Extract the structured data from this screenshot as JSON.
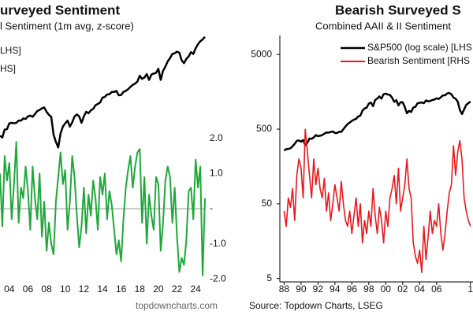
{
  "chart_data": [
    {
      "type": "line",
      "title": "urveyed Sentiment",
      "subtitle": "l Sentiment (1m avg, z-score)",
      "source": "topdowncharts.com",
      "log_y": true,
      "zero_line": true,
      "xlim": [
        2003,
        2025
      ],
      "xticks": [
        {
          "value": 2004,
          "label": "04"
        },
        {
          "value": 2006,
          "label": "06"
        },
        {
          "value": 2008,
          "label": "08"
        },
        {
          "value": 2010,
          "label": "10"
        },
        {
          "value": 2012,
          "label": "12"
        },
        {
          "value": 2014,
          "label": "14"
        },
        {
          "value": 2016,
          "label": "16"
        },
        {
          "value": 2018,
          "label": "18"
        },
        {
          "value": 2020,
          "label": "20"
        },
        {
          "value": 2022,
          "label": "22"
        },
        {
          "value": 2024,
          "label": "24"
        }
      ],
      "ylim": [
        50,
        6450
      ],
      "y2lim": [
        -2.13,
        5.0
      ],
      "y2ticks": [
        {
          "value": 2,
          "label": "2.0"
        },
        {
          "value": 1,
          "label": "1.0"
        },
        {
          "value": 0,
          "label": "-"
        },
        {
          "value": -1,
          "label": "-1.0"
        },
        {
          "value": -2,
          "label": "-2.0"
        }
      ],
      "x": [
        2003,
        2003.25,
        2003.5,
        2003.75,
        2004,
        2004.25,
        2004.5,
        2004.75,
        2005,
        2005.25,
        2005.5,
        2005.75,
        2006,
        2006.25,
        2006.5,
        2006.75,
        2007,
        2007.25,
        2007.5,
        2007.75,
        2008,
        2008.25,
        2008.5,
        2008.75,
        2009,
        2009.25,
        2009.5,
        2009.75,
        2010,
        2010.25,
        2010.5,
        2010.75,
        2011,
        2011.25,
        2011.5,
        2011.75,
        2012,
        2012.25,
        2012.5,
        2012.75,
        2013,
        2013.25,
        2013.5,
        2013.75,
        2014,
        2014.25,
        2014.5,
        2014.75,
        2015,
        2015.25,
        2015.5,
        2015.75,
        2016,
        2016.25,
        2016.5,
        2016.75,
        2017,
        2017.25,
        2017.5,
        2017.75,
        2018,
        2018.25,
        2018.5,
        2018.75,
        2019,
        2019.25,
        2019.5,
        2019.75,
        2020,
        2020.25,
        2020.5,
        2020.75,
        2021,
        2021.25,
        2021.5,
        2021.75,
        2022,
        2022.25,
        2022.5,
        2022.75,
        2023,
        2023.25,
        2023.5,
        2023.75,
        2024,
        2024.25,
        2024.5,
        2024.75,
        2025
      ],
      "series": [
        {
          "name": "LHS]",
          "color": "#000000",
          "values": [
            880,
            850,
            990,
            1000,
            1120,
            1130,
            1120,
            1130,
            1180,
            1180,
            1230,
            1220,
            1280,
            1300,
            1270,
            1340,
            1420,
            1450,
            1500,
            1520,
            1400,
            1320,
            1270,
            900,
            780,
            700,
            920,
            1050,
            1120,
            1180,
            1050,
            1140,
            1280,
            1330,
            1280,
            1130,
            1280,
            1400,
            1360,
            1440,
            1480,
            1590,
            1630,
            1680,
            1840,
            1870,
            1960,
            1970,
            2060,
            2060,
            2100,
            1930,
            1940,
            2060,
            2100,
            2170,
            2270,
            2360,
            2420,
            2520,
            2820,
            2650,
            2720,
            2910,
            2600,
            2880,
            2940,
            2980,
            3230,
            2600,
            3100,
            3360,
            3720,
            3970,
            4300,
            4360,
            4500,
            4400,
            3800,
            3600,
            3900,
            4100,
            4450,
            4300,
            4800,
            5200,
            5500,
            5700,
            6000
          ]
        },
        {
          "name": "HS]",
          "color": "#1fa83a",
          "axis": "y2",
          "values": [
            1.0,
            -0.5,
            1.5,
            0.8,
            1.3,
            -0.3,
            0.7,
            1.9,
            -0.4,
            0.6,
            0.3,
            1.2,
            0.5,
            -0.6,
            1.2,
            0.3,
            -0.3,
            1.0,
            -0.8,
            0.2,
            -1.2,
            -0.4,
            -1.0,
            -1.3,
            0.2,
            0.9,
            1.6,
            0.7,
            1.1,
            -0.6,
            0.2,
            1.5,
            0.9,
            -0.2,
            -1.1,
            -0.5,
            0.6,
            -0.7,
            0.4,
            -0.2,
            0.8,
            0.3,
            -0.6,
            0.9,
            0.4,
            1.0,
            -0.3,
            0.5,
            0.1,
            -0.6,
            -1.3,
            -0.9,
            -1.5,
            -0.3,
            0.6,
            1.1,
            1.5,
            0.6,
            1.2,
            1.6,
            1.7,
            -0.4,
            0.9,
            -1.0,
            0.4,
            -0.2,
            -0.6,
            0.9,
            0.7,
            -1.2,
            -0.4,
            0.8,
            1.2,
            0.9,
            -0.4,
            0.6,
            -0.8,
            -1.8,
            -1.4,
            -1.6,
            -0.9,
            0.5,
            0.6,
            -0.3,
            1.4,
            0.6,
            1.2,
            -1.9,
            0.3
          ]
        }
      ]
    },
    {
      "type": "line",
      "title": "Bearish Surveyed S",
      "subtitle": "Combined AAII & II Sentiment",
      "source": "Source: Topdown Charts, LSEG",
      "log_y": true,
      "xlim": [
        1987.5,
        2010.3
      ],
      "xticks": [
        {
          "value": 1988,
          "label": "88"
        },
        {
          "value": 1990,
          "label": "90"
        },
        {
          "value": 1992,
          "label": "92"
        },
        {
          "value": 1994,
          "label": "94"
        },
        {
          "value": 1996,
          "label": "96"
        },
        {
          "value": 1998,
          "label": "98"
        },
        {
          "value": 2000,
          "label": "00"
        },
        {
          "value": 2002,
          "label": "02"
        },
        {
          "value": 2004,
          "label": "04"
        },
        {
          "value": 2006,
          "label": "06"
        },
        {
          "value": 2010,
          "label": "1"
        }
      ],
      "ylim": [
        4.5,
        9000
      ],
      "yticks": [
        5000,
        500,
        50,
        5
      ],
      "x": [
        1988,
        1988.25,
        1988.5,
        1988.75,
        1989,
        1989.25,
        1989.5,
        1989.75,
        1990,
        1990.25,
        1990.5,
        1990.75,
        1991,
        1991.25,
        1991.5,
        1991.75,
        1992,
        1992.25,
        1992.5,
        1992.75,
        1993,
        1993.25,
        1993.5,
        1993.75,
        1994,
        1994.25,
        1994.5,
        1994.75,
        1995,
        1995.25,
        1995.5,
        1995.75,
        1996,
        1996.25,
        1996.5,
        1996.75,
        1997,
        1997.25,
        1997.5,
        1997.75,
        1998,
        1998.25,
        1998.5,
        1998.75,
        1999,
        1999.25,
        1999.5,
        1999.75,
        2000,
        2000.25,
        2000.5,
        2000.75,
        2001,
        2001.25,
        2001.5,
        2001.75,
        2002,
        2002.25,
        2002.5,
        2002.75,
        2003,
        2003.25,
        2003.5,
        2003.75,
        2004,
        2004.25,
        2004.5,
        2004.75,
        2005,
        2005.25,
        2005.5,
        2005.75,
        2006,
        2006.25,
        2006.5,
        2006.75,
        2007,
        2007.25,
        2007.5,
        2007.75,
        2008,
        2008.25,
        2008.5,
        2008.75,
        2009,
        2009.25,
        2009.5,
        2009.75,
        2010
      ],
      "series": [
        {
          "name": "S&P500 (log scale) [LHS",
          "color": "#000000",
          "values": [
            258,
            270,
            272,
            277,
            295,
            318,
            349,
            353,
            340,
            358,
            306,
            330,
            375,
            371,
            387,
            417,
            403,
            408,
            417,
            435,
            451,
            450,
            458,
            466,
            445,
            444,
            462,
            459,
            500,
            544,
            584,
            615,
            645,
            670,
            687,
            740,
            757,
            885,
            947,
            970,
            1100,
            1133,
            1017,
            1229,
            1286,
            1372,
            1282,
            1469,
            1498,
            1454,
            1436,
            1320,
            1160,
            1224,
            1040,
            1148,
            1147,
            989,
            815,
            880,
            848,
            974,
            995,
            1112,
            1126,
            1140,
            1114,
            1212,
            1180,
            1191,
            1228,
            1248,
            1295,
            1270,
            1335,
            1418,
            1420,
            1503,
            1527,
            1468,
            1322,
            1280,
            1166,
            903,
            797,
            919,
            1057,
            1115,
            1169
          ]
        },
        {
          "name": "Bearish Sentiment [RHS",
          "color": "#e8191c",
          "values": [
            40,
            25,
            60,
            45,
            80,
            30,
            120,
            200,
            150,
            60,
            500,
            250,
            120,
            60,
            200,
            90,
            150,
            80,
            60,
            110,
            40,
            70,
            30,
            50,
            90,
            60,
            40,
            100,
            50,
            30,
            25,
            40,
            20,
            35,
            60,
            25,
            50,
            15,
            30,
            20,
            40,
            25,
            80,
            35,
            20,
            45,
            30,
            15,
            40,
            25,
            60,
            80,
            120,
            50,
            150,
            40,
            60,
            90,
            200,
            80,
            60,
            15,
            10,
            8,
            12,
            6,
            25,
            9,
            18,
            40,
            20,
            30,
            25,
            50,
            20,
            12,
            20,
            40,
            70,
            90,
            300,
            120,
            250,
            350,
            200,
            60,
            40,
            30,
            25
          ]
        }
      ]
    }
  ]
}
